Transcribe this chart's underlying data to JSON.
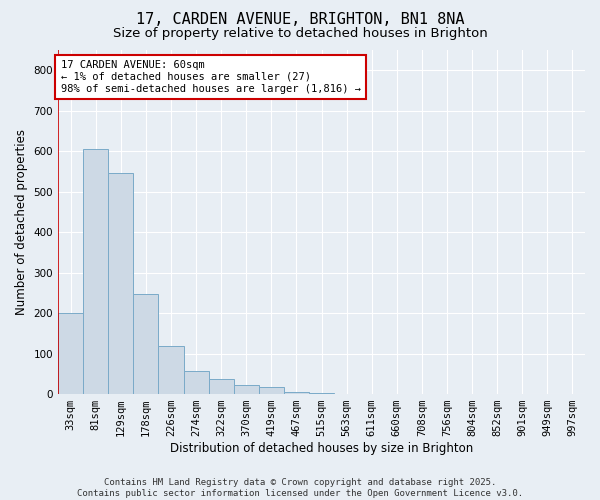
{
  "title1": "17, CARDEN AVENUE, BRIGHTON, BN1 8NA",
  "title2": "Size of property relative to detached houses in Brighton",
  "xlabel": "Distribution of detached houses by size in Brighton",
  "ylabel": "Number of detached properties",
  "categories": [
    "33sqm",
    "81sqm",
    "129sqm",
    "178sqm",
    "226sqm",
    "274sqm",
    "322sqm",
    "370sqm",
    "419sqm",
    "467sqm",
    "515sqm",
    "563sqm",
    "611sqm",
    "660sqm",
    "708sqm",
    "756sqm",
    "804sqm",
    "852sqm",
    "901sqm",
    "949sqm",
    "997sqm"
  ],
  "values": [
    200,
    605,
    545,
    248,
    120,
    58,
    38,
    22,
    18,
    4,
    2,
    1,
    1,
    0,
    0,
    0,
    1,
    0,
    0,
    0,
    1
  ],
  "bar_color": "#cdd9e5",
  "bar_edgecolor": "#7aaac8",
  "highlight_line_color": "#cc0000",
  "annotation_text": "17 CARDEN AVENUE: 60sqm\n← 1% of detached houses are smaller (27)\n98% of semi-detached houses are larger (1,816) →",
  "annotation_box_color": "#ffffff",
  "annotation_box_edgecolor": "#cc0000",
  "ylim": [
    0,
    850
  ],
  "yticks": [
    0,
    100,
    200,
    300,
    400,
    500,
    600,
    700,
    800
  ],
  "background_color": "#e8eef4",
  "plot_background": "#e8eef4",
  "footer_line1": "Contains HM Land Registry data © Crown copyright and database right 2025.",
  "footer_line2": "Contains public sector information licensed under the Open Government Licence v3.0.",
  "title_fontsize": 11,
  "subtitle_fontsize": 9.5,
  "axis_label_fontsize": 8.5,
  "tick_fontsize": 7.5,
  "annotation_fontsize": 7.5,
  "footer_fontsize": 6.5
}
